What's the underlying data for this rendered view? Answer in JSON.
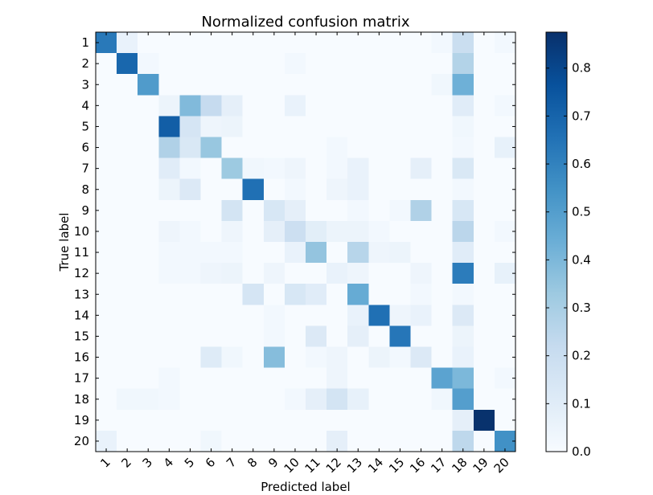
{
  "chart_data": {
    "type": "heatmap",
    "title": "Normalized confusion matrix",
    "xlabel": "Predicted label",
    "ylabel": "True label",
    "x_categories": [
      "1",
      "2",
      "3",
      "4",
      "5",
      "6",
      "7",
      "8",
      "9",
      "10",
      "11",
      "12",
      "13",
      "14",
      "15",
      "16",
      "17",
      "18",
      "19",
      "20"
    ],
    "y_categories": [
      "1",
      "2",
      "3",
      "4",
      "5",
      "6",
      "7",
      "8",
      "9",
      "10",
      "11",
      "12",
      "13",
      "14",
      "15",
      "16",
      "17",
      "18",
      "19",
      "20"
    ],
    "colorbar": {
      "min": 0.0,
      "max": 0.875,
      "ticks": [
        "0.0",
        "0.1",
        "0.2",
        "0.3",
        "0.4",
        "0.5",
        "0.6",
        "0.7",
        "0.8"
      ],
      "tick_values": [
        0.0,
        0.1,
        0.2,
        0.3,
        0.4,
        0.5,
        0.6,
        0.7,
        0.8
      ]
    },
    "colormap": "Blues",
    "colormap_stops": [
      "#f7fbff",
      "#deebf7",
      "#c6dbef",
      "#9ecae1",
      "#6baed6",
      "#4292c6",
      "#2171b5",
      "#08519c",
      "#08306b"
    ],
    "values": [
      [
        0.63,
        0.06,
        0,
        0,
        0,
        0,
        0,
        0,
        0,
        0,
        0,
        0,
        0,
        0,
        0,
        0,
        0.02,
        0.2,
        0,
        0.02
      ],
      [
        0,
        0.69,
        0.02,
        0,
        0,
        0,
        0,
        0,
        0,
        0.02,
        0,
        0,
        0,
        0,
        0,
        0,
        0,
        0.27,
        0,
        0
      ],
      [
        0,
        0,
        0.51,
        0,
        0,
        0,
        0,
        0,
        0,
        0,
        0,
        0,
        0,
        0,
        0,
        0,
        0.03,
        0.43,
        0,
        0
      ],
      [
        0,
        0,
        0,
        0.05,
        0.39,
        0.22,
        0.08,
        0,
        0,
        0.06,
        0,
        0,
        0,
        0,
        0,
        0,
        0,
        0.1,
        0,
        0.02
      ],
      [
        0,
        0,
        0,
        0.72,
        0.15,
        0.04,
        0.05,
        0,
        0,
        0,
        0,
        0,
        0,
        0,
        0,
        0,
        0,
        0.03,
        0,
        0
      ],
      [
        0,
        0,
        0,
        0.28,
        0.13,
        0.34,
        0,
        0,
        0,
        0,
        0,
        0.02,
        0,
        0,
        0,
        0,
        0,
        0.02,
        0,
        0.07
      ],
      [
        0,
        0,
        0,
        0.1,
        0.02,
        0,
        0.33,
        0.03,
        0.02,
        0.04,
        0,
        0.02,
        0.06,
        0,
        0,
        0.08,
        0,
        0.13,
        0,
        0
      ],
      [
        0,
        0,
        0,
        0.05,
        0.12,
        0,
        0,
        0.66,
        0,
        0.02,
        0,
        0.04,
        0.06,
        0,
        0,
        0,
        0,
        0.02,
        0,
        0
      ],
      [
        0,
        0,
        0,
        0,
        0,
        0,
        0.16,
        0,
        0.14,
        0.08,
        0,
        0,
        0.02,
        0,
        0.02,
        0.28,
        0,
        0.14,
        0,
        0
      ],
      [
        0,
        0,
        0,
        0.04,
        0.02,
        0,
        0.04,
        0,
        0.08,
        0.19,
        0.09,
        0.05,
        0.05,
        0.02,
        0,
        0,
        0,
        0.25,
        0,
        0.02
      ],
      [
        0,
        0,
        0,
        0.02,
        0.02,
        0.02,
        0.02,
        0,
        0,
        0.06,
        0.35,
        0,
        0.26,
        0.04,
        0.05,
        0,
        0,
        0.1,
        0,
        0
      ],
      [
        0,
        0,
        0,
        0.02,
        0.02,
        0.04,
        0.05,
        0,
        0.04,
        0,
        0,
        0.06,
        0.04,
        0,
        0,
        0.04,
        0,
        0.62,
        0,
        0.07
      ],
      [
        0,
        0,
        0,
        0,
        0,
        0,
        0,
        0.15,
        0,
        0.14,
        0.1,
        0,
        0.45,
        0,
        0,
        0.02,
        0,
        0.02,
        0,
        0
      ],
      [
        0,
        0,
        0,
        0,
        0,
        0,
        0,
        0,
        0.02,
        0,
        0,
        0,
        0.06,
        0.66,
        0.04,
        0.06,
        0,
        0.12,
        0,
        0
      ],
      [
        0,
        0,
        0,
        0,
        0,
        0,
        0,
        0,
        0.02,
        0,
        0.12,
        0,
        0.08,
        0,
        0.64,
        0,
        0,
        0.05,
        0,
        0
      ],
      [
        0,
        0,
        0,
        0,
        0,
        0.11,
        0.03,
        0,
        0.38,
        0,
        0.02,
        0.04,
        0,
        0.05,
        0.02,
        0.12,
        0,
        0.06,
        0,
        0
      ],
      [
        0,
        0,
        0,
        0.02,
        0,
        0,
        0,
        0,
        0,
        0,
        0,
        0.04,
        0,
        0,
        0,
        0,
        0.48,
        0.4,
        0,
        0.02
      ],
      [
        0,
        0.03,
        0.03,
        0.02,
        0,
        0,
        0,
        0,
        0,
        0.02,
        0.08,
        0.16,
        0.07,
        0,
        0,
        0,
        0.03,
        0.5,
        0,
        0
      ],
      [
        0,
        0,
        0,
        0,
        0,
        0,
        0,
        0,
        0,
        0,
        0,
        0,
        0,
        0,
        0,
        0,
        0,
        0.08,
        0.87,
        0
      ],
      [
        0.06,
        0,
        0,
        0,
        0,
        0.03,
        0,
        0,
        0,
        0,
        0,
        0.08,
        0,
        0,
        0,
        0,
        0,
        0.24,
        0,
        0.55
      ]
    ]
  }
}
